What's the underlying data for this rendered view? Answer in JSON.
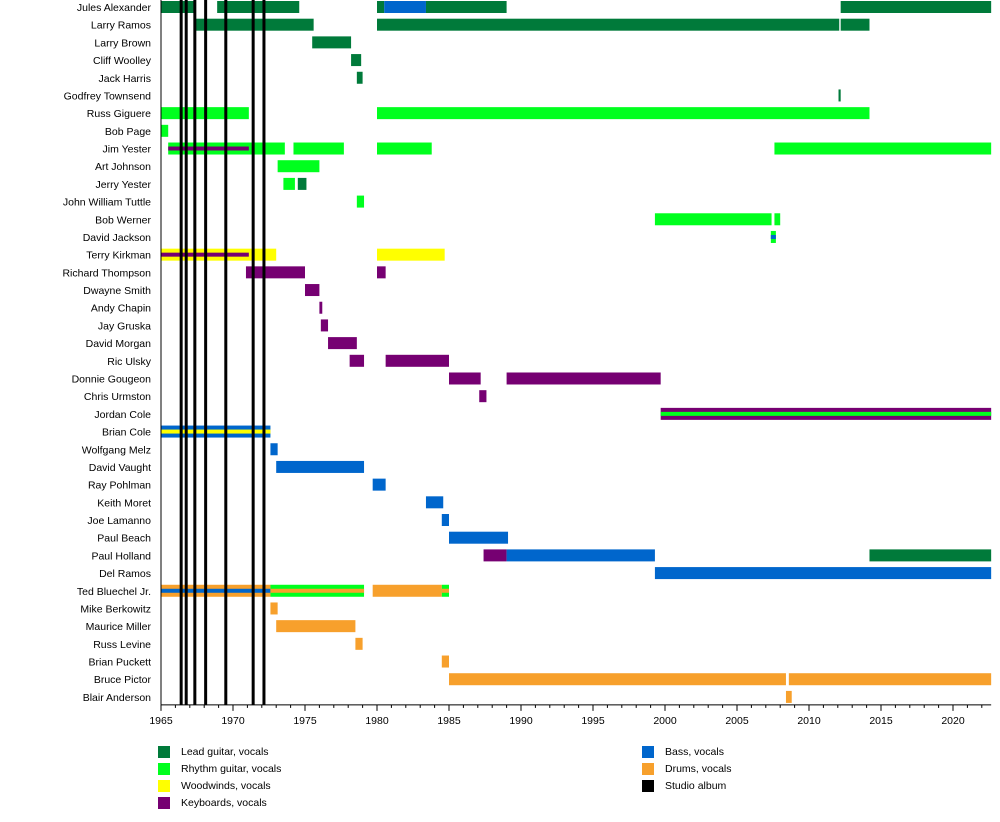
{
  "chart_data": {
    "type": "timeline",
    "title": "",
    "xlabel": "",
    "ylabel": "",
    "xlim": [
      1965,
      2022.65
    ],
    "x_ticks": [
      1965,
      1970,
      1975,
      1980,
      1985,
      1990,
      1995,
      2000,
      2005,
      2010,
      2015,
      2020
    ],
    "grid": false,
    "legend_position": "bottom",
    "colors": {
      "lead": "#007A3A",
      "rhythm": "#00FF1E",
      "woodwinds": "#FFFF00",
      "keyboards": "#760072",
      "bass": "#0066CC",
      "drums": "#F7A02C",
      "album": "#000000"
    },
    "legend": [
      {
        "key": "lead",
        "label": "Lead guitar, vocals"
      },
      {
        "key": "rhythm",
        "label": "Rhythm guitar, vocals"
      },
      {
        "key": "woodwinds",
        "label": "Woodwinds, vocals"
      },
      {
        "key": "keyboards",
        "label": "Keyboards, vocals"
      },
      {
        "key": "bass",
        "label": "Bass, vocals"
      },
      {
        "key": "drums",
        "label": "Drums, vocals"
      },
      {
        "key": "album",
        "label": "Studio album"
      }
    ],
    "studio_albums": [
      1966.4,
      1966.75,
      1967.35,
      1968.1,
      1969.5,
      1971.4,
      1972.15
    ],
    "members": [
      {
        "name": "Jules Alexander",
        "bars": [
          {
            "role": "lead",
            "start": 1965,
            "end": 1967.4
          },
          {
            "role": "lead",
            "start": 1968.9,
            "end": 1974.6
          },
          {
            "role": "lead",
            "start": 1980,
            "end": 1980.5
          },
          {
            "role": "bass",
            "start": 1980.5,
            "end": 1983.4
          },
          {
            "role": "lead",
            "start": 1983.4,
            "end": 1989
          },
          {
            "role": "lead",
            "start": 2012.2,
            "end": 2022.65
          }
        ]
      },
      {
        "name": "Larry Ramos",
        "bars": [
          {
            "role": "lead",
            "start": 1967.3,
            "end": 1975.6
          },
          {
            "role": "lead",
            "start": 1980,
            "end": 2012.1
          },
          {
            "role": "lead",
            "start": 2012.2,
            "end": 2014.2
          }
        ]
      },
      {
        "name": "Larry Brown",
        "bars": [
          {
            "role": "lead",
            "start": 1975.5,
            "end": 1978.2
          }
        ]
      },
      {
        "name": "Cliff Woolley",
        "bars": [
          {
            "role": "lead",
            "start": 1978.2,
            "end": 1978.9
          }
        ]
      },
      {
        "name": "Jack Harris",
        "bars": [
          {
            "role": "lead",
            "start": 1978.6,
            "end": 1979
          }
        ]
      },
      {
        "name": "Godfrey Townsend",
        "bars": [
          {
            "role": "lead",
            "start": 2012.05,
            "end": 2012.2
          }
        ]
      },
      {
        "name": "Russ Giguere",
        "bars": [
          {
            "role": "rhythm",
            "start": 1965,
            "end": 1971.1
          },
          {
            "role": "rhythm",
            "start": 1980,
            "end": 2014.2
          }
        ]
      },
      {
        "name": "Bob Page",
        "bars": [
          {
            "role": "rhythm",
            "start": 1965,
            "end": 1965.5
          }
        ]
      },
      {
        "name": "Jim Yester",
        "bars": [
          {
            "role": "rhythm",
            "start": 1965.5,
            "end": 1973.6,
            "stripe": {
              "role": "keyboards",
              "start": 1965.5,
              "end": 1971.1
            }
          },
          {
            "role": "rhythm",
            "start": 1974.2,
            "end": 1977.7
          },
          {
            "role": "rhythm",
            "start": 1980,
            "end": 1983.8
          },
          {
            "role": "rhythm",
            "start": 2007.6,
            "end": 2022.65
          }
        ]
      },
      {
        "name": "Art Johnson",
        "bars": [
          {
            "role": "rhythm",
            "start": 1973.1,
            "end": 1976
          }
        ]
      },
      {
        "name": "Jerry Yester",
        "bars": [
          {
            "role": "rhythm",
            "start": 1973.5,
            "end": 1974.3
          },
          {
            "role": "lead",
            "start": 1974.5,
            "end": 1975.1
          }
        ]
      },
      {
        "name": "John William Tuttle",
        "bars": [
          {
            "role": "rhythm",
            "start": 1978.6,
            "end": 1979.1
          }
        ]
      },
      {
        "name": "Bob Werner",
        "bars": [
          {
            "role": "rhythm",
            "start": 1999.3,
            "end": 2007.4
          },
          {
            "role": "rhythm",
            "start": 2007.6,
            "end": 2008
          }
        ]
      },
      {
        "name": "David Jackson",
        "bars": [
          {
            "role": "rhythm",
            "start": 2007.35,
            "end": 2007.7,
            "stripe": {
              "role": "bass",
              "start": 2007.35,
              "end": 2007.7
            }
          }
        ]
      },
      {
        "name": "Terry Kirkman",
        "bars": [
          {
            "role": "woodwinds",
            "start": 1965,
            "end": 1973,
            "stripe": {
              "role": "keyboards",
              "start": 1965,
              "end": 1971.1
            }
          },
          {
            "role": "woodwinds",
            "start": 1980,
            "end": 1984.7
          }
        ]
      },
      {
        "name": "Richard Thompson",
        "bars": [
          {
            "role": "keyboards",
            "start": 1970.9,
            "end": 1975
          },
          {
            "role": "keyboards",
            "start": 1980,
            "end": 1980.6
          }
        ]
      },
      {
        "name": "Dwayne Smith",
        "bars": [
          {
            "role": "keyboards",
            "start": 1975,
            "end": 1976
          }
        ]
      },
      {
        "name": "Andy Chapin",
        "bars": [
          {
            "role": "keyboards",
            "start": 1976,
            "end": 1976.2
          }
        ]
      },
      {
        "name": "Jay Gruska",
        "bars": [
          {
            "role": "keyboards",
            "start": 1976.1,
            "end": 1976.6
          }
        ]
      },
      {
        "name": "David Morgan",
        "bars": [
          {
            "role": "keyboards",
            "start": 1976.6,
            "end": 1978.6
          }
        ]
      },
      {
        "name": "Ric Ulsky",
        "bars": [
          {
            "role": "keyboards",
            "start": 1978.1,
            "end": 1979.1
          },
          {
            "role": "keyboards",
            "start": 1980.6,
            "end": 1985
          }
        ]
      },
      {
        "name": "Donnie Gougeon",
        "bars": [
          {
            "role": "keyboards",
            "start": 1985,
            "end": 1987.2
          },
          {
            "role": "keyboards",
            "start": 1989,
            "end": 1999.7
          }
        ]
      },
      {
        "name": "Chris Urmston",
        "bars": [
          {
            "role": "keyboards",
            "start": 1987.1,
            "end": 1987.6
          }
        ]
      },
      {
        "name": "Jordan Cole",
        "bars": [
          {
            "role": "keyboards",
            "start": 1999.7,
            "end": 2022.65,
            "stripe": {
              "role": "rhythm",
              "start": 1999.7,
              "end": 2022.65
            }
          }
        ]
      },
      {
        "name": "Brian Cole",
        "bars": [
          {
            "role": "bass",
            "start": 1965,
            "end": 1972.6,
            "stripe": {
              "role": "woodwinds",
              "start": 1965,
              "end": 1972.6
            }
          }
        ]
      },
      {
        "name": "Wolfgang Melz",
        "bars": [
          {
            "role": "bass",
            "start": 1972.6,
            "end": 1973.1
          }
        ]
      },
      {
        "name": "David Vaught",
        "bars": [
          {
            "role": "bass",
            "start": 1973,
            "end": 1979.1
          }
        ]
      },
      {
        "name": "Ray Pohlman",
        "bars": [
          {
            "role": "bass",
            "start": 1979.7,
            "end": 1980.6
          }
        ]
      },
      {
        "name": "Keith Moret",
        "bars": [
          {
            "role": "bass",
            "start": 1983.4,
            "end": 1984.6
          }
        ]
      },
      {
        "name": "Joe Lamanno",
        "bars": [
          {
            "role": "bass",
            "start": 1984.5,
            "end": 1985
          }
        ]
      },
      {
        "name": "Paul Beach",
        "bars": [
          {
            "role": "bass",
            "start": 1985,
            "end": 1989.1
          }
        ]
      },
      {
        "name": "Paul Holland",
        "bars": [
          {
            "role": "keyboards",
            "start": 1987.4,
            "end": 1989
          },
          {
            "role": "bass",
            "start": 1989,
            "end": 1999.3
          },
          {
            "role": "lead",
            "start": 2014.2,
            "end": 2022.65
          }
        ]
      },
      {
        "name": "Del Ramos",
        "bars": [
          {
            "role": "bass",
            "start": 1999.3,
            "end": 2022.65
          }
        ]
      },
      {
        "name": "Ted Bluechel Jr.",
        "bars": [
          {
            "role": "drums",
            "start": 1965,
            "end": 1972.6,
            "stripe": {
              "role": "bass",
              "start": 1965,
              "end": 1972.6
            }
          },
          {
            "role": "rhythm",
            "start": 1972.6,
            "end": 1979.1,
            "stripe": {
              "role": "drums",
              "start": 1972.6,
              "end": 1979.1
            }
          },
          {
            "role": "drums",
            "start": 1979.7,
            "end": 1984.5
          },
          {
            "role": "rhythm",
            "start": 1984.5,
            "end": 1985,
            "stripe": {
              "role": "drums",
              "start": 1984.5,
              "end": 1985
            }
          }
        ]
      },
      {
        "name": "Mike Berkowitz",
        "bars": [
          {
            "role": "drums",
            "start": 1972.6,
            "end": 1973.1
          }
        ]
      },
      {
        "name": "Maurice Miller",
        "bars": [
          {
            "role": "drums",
            "start": 1973,
            "end": 1978.5
          }
        ]
      },
      {
        "name": "Russ Levine",
        "bars": [
          {
            "role": "drums",
            "start": 1978.5,
            "end": 1979
          }
        ]
      },
      {
        "name": "Brian Puckett",
        "bars": [
          {
            "role": "drums",
            "start": 1984.5,
            "end": 1985
          }
        ]
      },
      {
        "name": "Bruce Pictor",
        "bars": [
          {
            "role": "drums",
            "start": 1985,
            "end": 2008.4
          },
          {
            "role": "drums",
            "start": 2008.6,
            "end": 2022.65
          }
        ]
      },
      {
        "name": "Blair Anderson",
        "bars": [
          {
            "role": "drums",
            "start": 2008.4,
            "end": 2008.8
          }
        ]
      }
    ]
  }
}
